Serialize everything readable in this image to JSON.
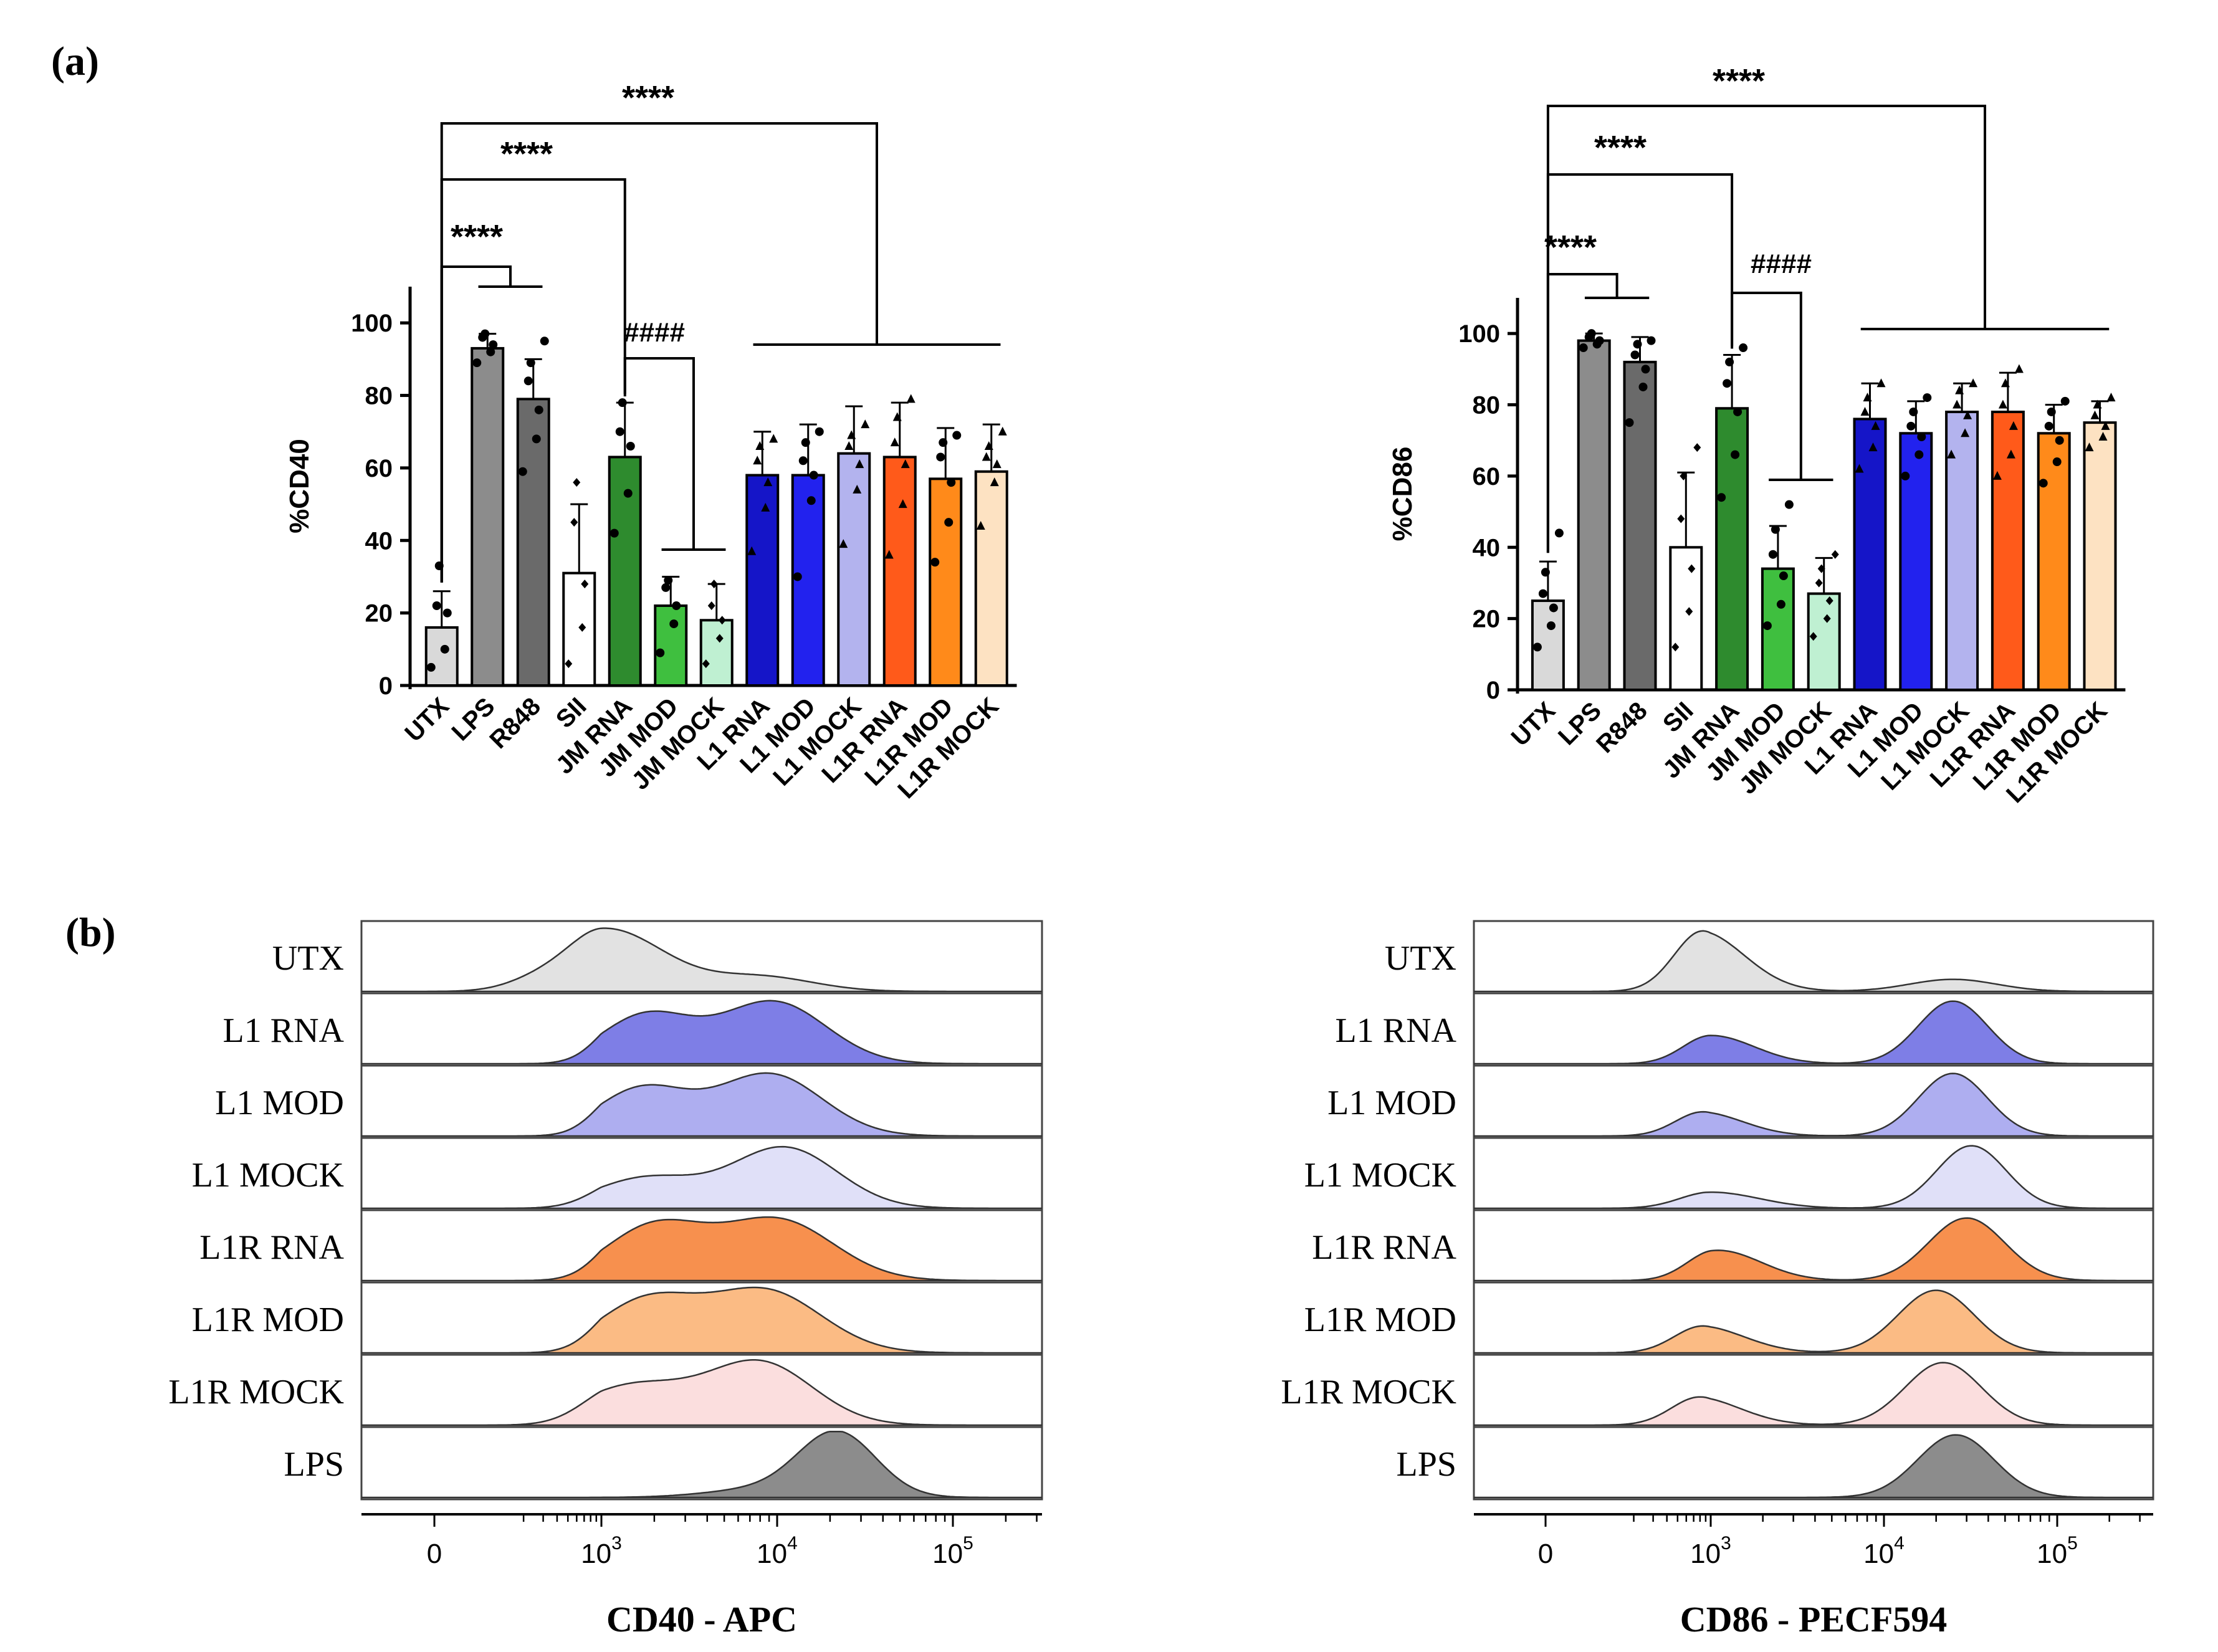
{
  "panels": {
    "a_label": "(a)",
    "b_label": "(b)"
  },
  "colors": {
    "UTX": "#d9d9d9",
    "LPS": "#8c8c8c",
    "R848": "#6a6a6a",
    "SII": "#ffffff",
    "JM RNA": "#2e8b2e",
    "JM MOD": "#3fbf3f",
    "JM MOCK": "#bff0d2",
    "L1 RNA": "#1515c8",
    "L1 MOD": "#2222ee",
    "L1 MOCK": "#b3b3ee",
    "L1R RNA": "#ff5a1a",
    "L1R MOD": "#ff8a1a",
    "L1R MOCK": "#fde2c2"
  },
  "chart_data": [
    {
      "type": "bar",
      "id": "cd40-bar",
      "title": "",
      "ylabel": "%CD40",
      "xlabel": "",
      "ylim": [
        0,
        110
      ],
      "yticks": [
        "0",
        "20",
        "40",
        "60",
        "80",
        "100"
      ],
      "categories": [
        "UTX",
        "LPS",
        "R848",
        "SII",
        "JM RNA",
        "JM MOD",
        "JM MOCK",
        "L1 RNA",
        "L1 MOD",
        "L1 MOCK",
        "L1R RNA",
        "L1R MOD",
        "L1R MOCK"
      ],
      "values": [
        16,
        93,
        79,
        31,
        63,
        22,
        18,
        58,
        58,
        64,
        63,
        57,
        59
      ],
      "errors": [
        10,
        4,
        11,
        19,
        15,
        8,
        10,
        12,
        14,
        13,
        15,
        14,
        13
      ],
      "points": [
        [
          5,
          10,
          20,
          22,
          33
        ],
        [
          89,
          92,
          94,
          96,
          97
        ],
        [
          59,
          68,
          76,
          84,
          89,
          95
        ],
        [
          6,
          16,
          28,
          45,
          56
        ],
        [
          42,
          53,
          66,
          70,
          78
        ],
        [
          9,
          17,
          22,
          27,
          29
        ],
        [
          6,
          13,
          18,
          22,
          28
        ],
        [
          37,
          49,
          56,
          62,
          66,
          68
        ],
        [
          30,
          51,
          58,
          62,
          67,
          70
        ],
        [
          39,
          54,
          61,
          66,
          69,
          72
        ],
        [
          36,
          50,
          61,
          67,
          74,
          79
        ],
        [
          34,
          45,
          56,
          63,
          67,
          69
        ],
        [
          44,
          56,
          61,
          63,
          66,
          70
        ]
      ],
      "annotations": [
        {
          "text": "****",
          "from": "UTX",
          "to": "L1 RNA..L1R MOCK"
        },
        {
          "text": "****",
          "from": "UTX",
          "to": "JM RNA"
        },
        {
          "text": "****",
          "from": "UTX",
          "to": "LPS..R848"
        },
        {
          "text": "####",
          "from": "JM RNA",
          "to": "JM MOD..JM MOCK"
        }
      ]
    },
    {
      "type": "bar",
      "id": "cd86-bar",
      "title": "",
      "ylabel": "%CD86",
      "xlabel": "",
      "ylim": [
        0,
        110
      ],
      "yticks": [
        "0",
        "20",
        "40",
        "60",
        "80",
        "100"
      ],
      "categories": [
        "UTX",
        "LPS",
        "R848",
        "SII",
        "JM RNA",
        "JM MOD",
        "JM MOCK",
        "L1 RNA",
        "L1 MOD",
        "L1 MOCK",
        "L1R RNA",
        "L1R MOD",
        "L1R MOCK"
      ],
      "values": [
        25,
        98,
        92,
        40,
        79,
        34,
        27,
        76,
        72,
        78,
        78,
        72,
        75
      ],
      "errors": [
        11,
        2,
        7,
        21,
        15,
        12,
        10,
        10,
        9,
        8,
        11,
        8,
        6
      ],
      "points": [
        [
          12,
          18,
          23,
          27,
          33,
          44
        ],
        [
          96,
          97,
          98,
          99,
          100
        ],
        [
          75,
          85,
          90,
          94,
          97,
          98
        ],
        [
          12,
          22,
          34,
          48,
          60,
          68
        ],
        [
          54,
          66,
          78,
          86,
          92,
          96
        ],
        [
          18,
          24,
          32,
          38,
          45,
          52
        ],
        [
          15,
          20,
          25,
          30,
          34,
          38
        ],
        [
          62,
          68,
          74,
          78,
          82,
          86
        ],
        [
          60,
          66,
          71,
          74,
          78,
          82
        ],
        [
          66,
          72,
          77,
          80,
          84,
          86
        ],
        [
          60,
          66,
          74,
          80,
          86,
          90
        ],
        [
          58,
          64,
          70,
          74,
          78,
          81
        ],
        [
          68,
          71,
          74,
          77,
          80,
          82
        ]
      ],
      "annotations": [
        {
          "text": "****",
          "from": "UTX",
          "to": "L1 RNA..L1R MOCK"
        },
        {
          "text": "****",
          "from": "UTX",
          "to": "JM RNA"
        },
        {
          "text": "****",
          "from": "UTX",
          "to": "LPS..R848"
        },
        {
          "text": "####",
          "from": "JM RNA",
          "to": "JM MOD..JM MOCK"
        }
      ]
    },
    {
      "type": "area",
      "id": "cd40-hist",
      "xlabel": "CD40 - APC",
      "xscale": "biexponential",
      "xticks": [
        {
          "value": 0,
          "label": "0"
        },
        {
          "value": 1000,
          "base": "10",
          "exp": "3"
        },
        {
          "value": 10000,
          "base": "10",
          "exp": "4"
        },
        {
          "value": 100000,
          "base": "10",
          "exp": "5"
        }
      ],
      "tracks": [
        {
          "label": "UTX",
          "color": "#e2e2e2",
          "peaks": [
            {
              "at": 1100,
              "h": 0.9,
              "w": 0.32
            },
            {
              "at": 300,
              "h": 0.2,
              "w": 0.3
            },
            {
              "at": 8000,
              "h": 0.22,
              "w": 0.3
            }
          ]
        },
        {
          "label": "L1 RNA",
          "color": "#7e7ee6",
          "peaks": [
            {
              "at": 1800,
              "h": 0.72,
              "w": 0.26
            },
            {
              "at": 9500,
              "h": 0.92,
              "w": 0.3
            }
          ]
        },
        {
          "label": "L1 MOD",
          "color": "#aeaef0",
          "peaks": [
            {
              "at": 1700,
              "h": 0.7,
              "w": 0.26
            },
            {
              "at": 9000,
              "h": 0.92,
              "w": 0.3
            }
          ]
        },
        {
          "label": "L1 MOCK",
          "color": "#e0e0f8",
          "peaks": [
            {
              "at": 1800,
              "h": 0.45,
              "w": 0.3
            },
            {
              "at": 11000,
              "h": 0.9,
              "w": 0.3
            }
          ]
        },
        {
          "label": "L1R RNA",
          "color": "#f7904e",
          "peaks": [
            {
              "at": 2000,
              "h": 0.8,
              "w": 0.28
            },
            {
              "at": 10000,
              "h": 0.9,
              "w": 0.32
            }
          ]
        },
        {
          "label": "L1R MOD",
          "color": "#fbbb84",
          "peaks": [
            {
              "at": 1800,
              "h": 0.76,
              "w": 0.28
            },
            {
              "at": 8500,
              "h": 0.92,
              "w": 0.32
            }
          ]
        },
        {
          "label": "L1R MOCK",
          "color": "#fbdede",
          "peaks": [
            {
              "at": 1500,
              "h": 0.58,
              "w": 0.32
            },
            {
              "at": 8000,
              "h": 0.92,
              "w": 0.3
            }
          ]
        },
        {
          "label": "LPS",
          "color": "#8c8c8c",
          "peaks": [
            {
              "at": 22000,
              "h": 0.95,
              "w": 0.22
            },
            {
              "at": 8000,
              "h": 0.12,
              "w": 0.3
            }
          ]
        }
      ]
    },
    {
      "type": "area",
      "id": "cd86-hist",
      "xlabel": "CD86 - PECF594",
      "xscale": "biexponential",
      "xticks": [
        {
          "value": 0,
          "label": "0"
        },
        {
          "value": 1000,
          "base": "10",
          "exp": "3"
        },
        {
          "value": 10000,
          "base": "10",
          "exp": "4"
        },
        {
          "value": 100000,
          "base": "10",
          "exp": "5"
        }
      ],
      "tracks": [
        {
          "label": "UTX",
          "color": "#e2e2e2",
          "peaks": [
            {
              "at": 850,
              "h": 0.9,
              "w": 0.26
            },
            {
              "at": 25000,
              "h": 0.18,
              "w": 0.25
            }
          ]
        },
        {
          "label": "L1 RNA",
          "color": "#7e7ee6",
          "peaks": [
            {
              "at": 1000,
              "h": 0.42,
              "w": 0.25
            },
            {
              "at": 25000,
              "h": 0.93,
              "w": 0.2
            }
          ]
        },
        {
          "label": "L1 MOD",
          "color": "#aeaef0",
          "peaks": [
            {
              "at": 850,
              "h": 0.36,
              "w": 0.25
            },
            {
              "at": 25000,
              "h": 0.93,
              "w": 0.2
            }
          ]
        },
        {
          "label": "L1 MOCK",
          "color": "#e0e0f8",
          "peaks": [
            {
              "at": 1000,
              "h": 0.24,
              "w": 0.28
            },
            {
              "at": 32000,
              "h": 0.93,
              "w": 0.2
            }
          ]
        },
        {
          "label": "L1R RNA",
          "color": "#f7904e",
          "peaks": [
            {
              "at": 1100,
              "h": 0.45,
              "w": 0.25
            },
            {
              "at": 30000,
              "h": 0.93,
              "w": 0.22
            }
          ]
        },
        {
          "label": "L1R MOD",
          "color": "#fbbb84",
          "peaks": [
            {
              "at": 850,
              "h": 0.4,
              "w": 0.26
            },
            {
              "at": 20000,
              "h": 0.93,
              "w": 0.22
            }
          ]
        },
        {
          "label": "L1R MOCK",
          "color": "#fbdede",
          "peaks": [
            {
              "at": 800,
              "h": 0.42,
              "w": 0.26
            },
            {
              "at": 22000,
              "h": 0.93,
              "w": 0.22
            }
          ]
        },
        {
          "label": "LPS",
          "color": "#8c8c8c",
          "peaks": [
            {
              "at": 26000,
              "h": 0.93,
              "w": 0.22
            }
          ]
        }
      ]
    }
  ]
}
